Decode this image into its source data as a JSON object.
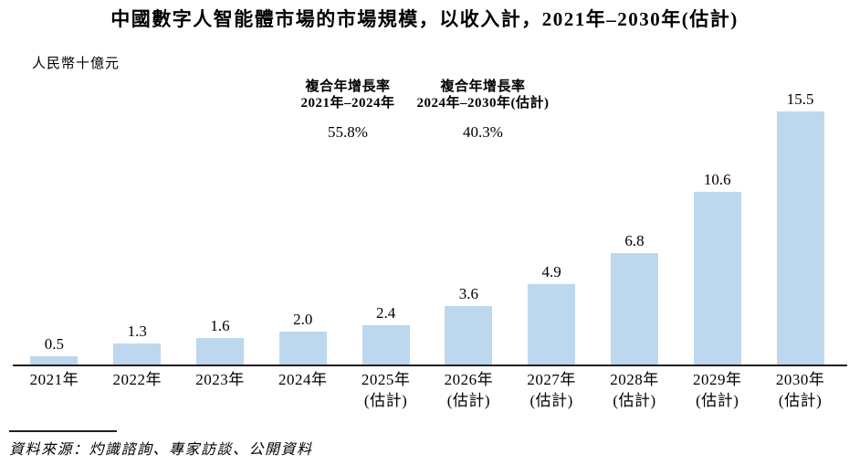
{
  "title": "中國數字人智能體市場的市場規模，以收入計，2021年–2030年(估計)",
  "unit_label": "人民幣十億元",
  "cagr_annotations": [
    {
      "line1": "複合年增長率",
      "line2": "2021年–2024年",
      "value": "55.8%"
    },
    {
      "line1": "複合年增長率",
      "line2": "2024年–2030年(估計)",
      "value": "40.3%"
    }
  ],
  "source": "資料來源：灼識諮詢、專家訪談、公開資料",
  "colors": {
    "bar_fill": "#BDD7EE",
    "axis_line": "#231F20",
    "text": "#000000"
  },
  "chart_data": {
    "type": "bar",
    "title": "中國數字人智能體市場的市場規模，以收入計，2021年–2030年(估計)",
    "ylabel": "人民幣十億元",
    "categories": [
      "2021年",
      "2022年",
      "2023年",
      "2024年",
      "2025年(估計)",
      "2026年(估計)",
      "2027年(估計)",
      "2028年(估計)",
      "2029年(估計)",
      "2030年(估計)"
    ],
    "values": [
      0.5,
      1.3,
      1.6,
      2.0,
      2.4,
      3.6,
      4.9,
      6.8,
      10.6,
      15.5
    ],
    "value_labels": [
      "0.5",
      "1.3",
      "1.6",
      "2.0",
      "2.4",
      "3.6",
      "4.9",
      "6.8",
      "10.6",
      "15.5"
    ],
    "tick_labels": [
      {
        "line1": "2021年",
        "line2": ""
      },
      {
        "line1": "2022年",
        "line2": ""
      },
      {
        "line1": "2023年",
        "line2": ""
      },
      {
        "line1": "2024年",
        "line2": ""
      },
      {
        "line1": "2025年",
        "line2": "(估計)"
      },
      {
        "line1": "2026年",
        "line2": "(估計)"
      },
      {
        "line1": "2027年",
        "line2": "(估計)"
      },
      {
        "line1": "2028年",
        "line2": "(估計)"
      },
      {
        "line1": "2029年",
        "line2": "(估計)"
      },
      {
        "line1": "2030年",
        "line2": "(估計)"
      }
    ],
    "ylim": [
      0,
      15.5
    ],
    "grid": false,
    "legend": false,
    "annotations": [
      {
        "text": "複合年增長率 2021年–2024年",
        "value": "55.8%"
      },
      {
        "text": "複合年增長率 2024年–2030年(估計)",
        "value": "40.3%"
      }
    ]
  }
}
